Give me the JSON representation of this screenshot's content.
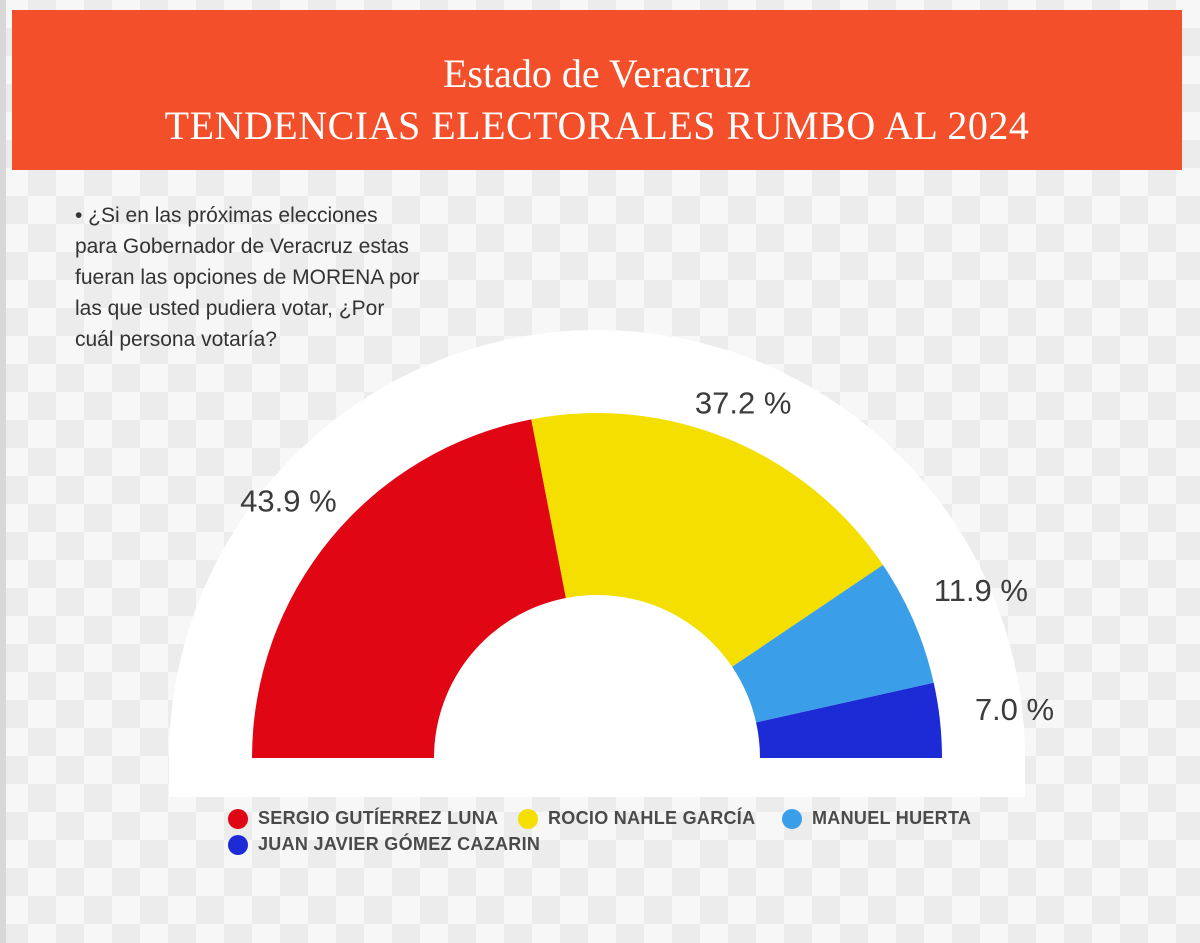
{
  "header": {
    "line1": "Estado de Veracruz",
    "line2": "TENDENCIAS ELECTORALES RUMBO AL 2024",
    "background": "#f44f2b"
  },
  "question": {
    "lines": [
      "• ¿Si en las próximas elecciones",
      "para Gobernador de Veracruz estas",
      "fueran las opciones de MORENA por",
      "las que usted pudiera votar, ¿Por",
      "cuál persona  votaría?"
    ]
  },
  "chart_data": {
    "type": "pie",
    "subtype": "half-donut",
    "categories": [
      "SERGIO GUTÍERREZ LUNA",
      "ROCIO NAHLE GARCÍA",
      "MANUEL HUERTA",
      "JUAN JAVIER GÓMEZ CAZARIN"
    ],
    "values": [
      43.9,
      37.2,
      11.9,
      7.0
    ],
    "labels": [
      "43.9 %",
      "37.2 %",
      "11.9 %",
      "7.0 %"
    ],
    "colors": [
      "#e00613",
      "#f5df00",
      "#3a9fe8",
      "#1d2bd6"
    ],
    "legend_position": "bottom"
  }
}
